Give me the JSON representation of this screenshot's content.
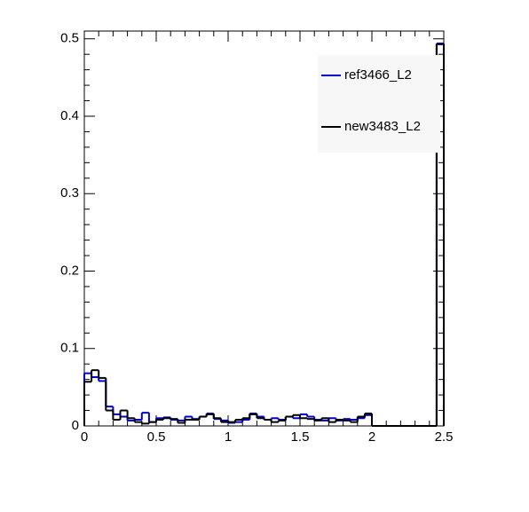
{
  "chart_data": {
    "type": "histogram",
    "bins": [
      0,
      0.05,
      0.1,
      0.15,
      0.2,
      0.25,
      0.3,
      0.35,
      0.4,
      0.45,
      0.5,
      0.55,
      0.6,
      0.65,
      0.7,
      0.75,
      0.8,
      0.85,
      0.9,
      0.95,
      1,
      1.05,
      1.1,
      1.15,
      1.2,
      1.25,
      1.3,
      1.35,
      1.4,
      1.45,
      1.5,
      1.55,
      1.6,
      1.65,
      1.7,
      1.75,
      1.8,
      1.85,
      1.9,
      1.95,
      2,
      2.05,
      2.1,
      2.15,
      2.2,
      2.25,
      2.3,
      2.35,
      2.4,
      2.45,
      2.5
    ],
    "series": [
      {
        "name": "ref3466_L2",
        "color": "#0000cc",
        "values": [
          0.068,
          0.063,
          0.058,
          0.025,
          0.015,
          0.012,
          0.007,
          0.008,
          0.017,
          0.005,
          0.01,
          0.011,
          0.008,
          0.007,
          0.012,
          0.009,
          0.012,
          0.016,
          0.009,
          0.007,
          0.004,
          0.005,
          0.008,
          0.016,
          0.012,
          0.008,
          0.01,
          0.008,
          0.012,
          0.01,
          0.015,
          0.012,
          0.008,
          0.007,
          0.01,
          0.007,
          0.009,
          0.008,
          0.01,
          0.014,
          0,
          0,
          0,
          0,
          0,
          0,
          0,
          0,
          0,
          0.494
        ]
      },
      {
        "name": "new3483_L2",
        "color": "#000000",
        "values": [
          0.057,
          0.072,
          0.062,
          0.02,
          0.008,
          0.02,
          0.01,
          0.005,
          0.003,
          0.005,
          0.008,
          0.01,
          0.009,
          0.004,
          0.008,
          0.008,
          0.012,
          0.015,
          0.01,
          0.005,
          0.005,
          0.008,
          0.01,
          0.015,
          0.01,
          0.008,
          0.005,
          0.007,
          0.012,
          0.014,
          0.01,
          0.009,
          0.007,
          0.01,
          0.005,
          0.008,
          0.007,
          0.005,
          0.012,
          0.016,
          0,
          0,
          0,
          0,
          0,
          0,
          0,
          0,
          0,
          0.493
        ]
      }
    ],
    "xlim": [
      0,
      2.5
    ],
    "xticks": [
      0,
      0.5,
      1,
      1.5,
      2,
      2.5
    ],
    "ylim": [
      0,
      0.51
    ],
    "yticks": [
      0,
      0.1,
      0.2,
      0.3,
      0.4,
      0.5
    ],
    "legend": "top-right"
  }
}
